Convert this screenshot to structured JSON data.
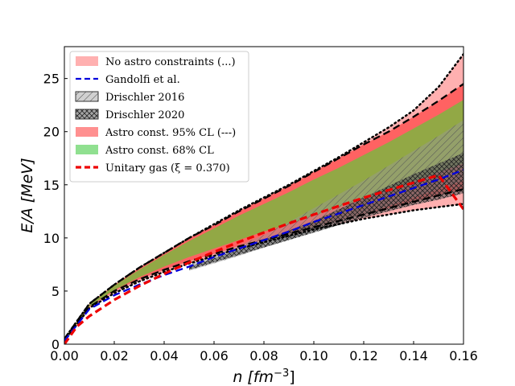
{
  "chart_data": {
    "type": "area",
    "xlabel_main": "n [fm",
    "xlabel_sup": "−3",
    "xlabel_end": "]",
    "ylabel": "E/A [MeV]",
    "xlim": [
      0,
      0.16
    ],
    "ylim": [
      0,
      28
    ],
    "x_ticks": [
      0.0,
      0.02,
      0.04,
      0.06,
      0.08,
      0.1,
      0.12,
      0.14,
      0.16
    ],
    "x_tick_labels": [
      "0.00",
      "0.02",
      "0.04",
      "0.06",
      "0.08",
      "0.10",
      "0.12",
      "0.14",
      "0.16"
    ],
    "y_ticks": [
      0,
      5,
      10,
      15,
      20,
      25
    ],
    "y_tick_labels": [
      "0",
      "5",
      "10",
      "15",
      "20",
      "25"
    ],
    "legend_position": "top-left",
    "legend": [
      {
        "label": "No astro constraints (...)",
        "kind": "patch",
        "color": "#ffb0b0"
      },
      {
        "label": "Gandolfi et al.",
        "kind": "line",
        "color": "#0000dd",
        "dash": "dashed"
      },
      {
        "label": "Drischler 2016",
        "kind": "hatch-patch",
        "color": "#aaaaaa"
      },
      {
        "label": "Drischler 2020",
        "kind": "hatch-patch",
        "color": "#666666"
      },
      {
        "label": "Astro const. 95% CL (---)",
        "kind": "patch",
        "color": "#ff9090"
      },
      {
        "label": "Astro const. 68% CL",
        "kind": "patch",
        "color": "#90e090"
      },
      {
        "label": "Unitary gas (ξ = 0.370)",
        "kind": "line",
        "color": "#ee0000",
        "dash": "dashed"
      }
    ],
    "series": [
      {
        "name": "No astro constraints",
        "type": "band",
        "color": "#ffb0b0",
        "x": [
          0.0,
          0.01,
          0.02,
          0.03,
          0.04,
          0.05,
          0.06,
          0.07,
          0.08,
          0.09,
          0.1,
          0.11,
          0.12,
          0.13,
          0.14,
          0.15,
          0.16
        ],
        "lower": [
          0.3,
          3.4,
          4.8,
          5.9,
          6.8,
          7.6,
          8.3,
          9.0,
          9.6,
          10.2,
          10.8,
          11.3,
          11.8,
          12.2,
          12.6,
          12.9,
          13.2
        ],
        "upper": [
          0.5,
          3.8,
          5.6,
          7.2,
          8.6,
          10.0,
          11.3,
          12.6,
          13.8,
          15.0,
          16.3,
          17.6,
          19.0,
          20.4,
          22.0,
          24.2,
          27.3
        ]
      },
      {
        "name": "Astro const. 95% CL",
        "type": "band",
        "color": "#ff5555",
        "x": [
          0.0,
          0.01,
          0.02,
          0.03,
          0.04,
          0.05,
          0.06,
          0.07,
          0.08,
          0.09,
          0.1,
          0.11,
          0.12,
          0.13,
          0.14,
          0.15,
          0.16
        ],
        "lower": [
          0.3,
          3.5,
          5.0,
          6.1,
          7.0,
          7.8,
          8.5,
          9.2,
          9.8,
          10.4,
          11.0,
          11.6,
          12.2,
          12.8,
          13.4,
          14.0,
          14.6
        ],
        "upper": [
          0.5,
          3.8,
          5.6,
          7.2,
          8.6,
          10.0,
          11.2,
          12.5,
          13.7,
          14.9,
          16.2,
          17.5,
          18.8,
          20.0,
          21.4,
          22.9,
          24.5
        ]
      },
      {
        "name": "Astro const. 68% CL",
        "type": "band",
        "color": "#86b043",
        "x": [
          0.0,
          0.01,
          0.02,
          0.03,
          0.04,
          0.05,
          0.06,
          0.07,
          0.08,
          0.09,
          0.1,
          0.11,
          0.12,
          0.13,
          0.14,
          0.15,
          0.16
        ],
        "lower": [
          0.3,
          3.55,
          5.1,
          6.3,
          7.3,
          8.2,
          9.0,
          9.8,
          10.6,
          11.3,
          12.1,
          12.9,
          13.7,
          14.5,
          15.3,
          16.2,
          17.0
        ],
        "upper": [
          0.5,
          3.75,
          5.5,
          7.0,
          8.4,
          9.7,
          10.9,
          12.1,
          13.2,
          14.3,
          15.5,
          16.6,
          17.8,
          19.0,
          20.3,
          21.6,
          23.0
        ]
      },
      {
        "name": "Drischler 2016",
        "type": "band",
        "color": "#999999",
        "x": [
          0.05,
          0.06,
          0.07,
          0.08,
          0.09,
          0.1,
          0.11,
          0.12,
          0.13,
          0.14,
          0.15,
          0.16
        ],
        "lower": [
          6.9,
          7.6,
          8.3,
          9.1,
          9.8,
          10.6,
          11.4,
          12.2,
          13.0,
          13.8,
          14.6,
          15.4
        ],
        "upper": [
          7.5,
          8.4,
          9.3,
          10.3,
          11.5,
          12.8,
          14.1,
          15.4,
          16.8,
          18.2,
          19.6,
          21.1
        ]
      },
      {
        "name": "Drischler 2020",
        "type": "band",
        "color": "#555555",
        "x": [
          0.05,
          0.06,
          0.07,
          0.08,
          0.09,
          0.1,
          0.11,
          0.12,
          0.13,
          0.14,
          0.15,
          0.16
        ],
        "lower": [
          7.0,
          7.7,
          8.4,
          9.1,
          9.8,
          10.5,
          11.2,
          11.9,
          12.5,
          13.1,
          13.6,
          14.2
        ],
        "upper": [
          7.3,
          8.1,
          8.9,
          9.8,
          10.7,
          11.6,
          12.7,
          13.8,
          14.9,
          16.0,
          17.0,
          18.0
        ]
      },
      {
        "name": "No astro bound (lower)",
        "type": "line",
        "color": "#000000",
        "dash": "dotted",
        "x": [
          0.0,
          0.01,
          0.02,
          0.03,
          0.04,
          0.05,
          0.06,
          0.07,
          0.08,
          0.09,
          0.1,
          0.11,
          0.12,
          0.13,
          0.14,
          0.15,
          0.16
        ],
        "y": [
          0.3,
          3.4,
          4.8,
          5.9,
          6.8,
          7.6,
          8.3,
          9.0,
          9.6,
          10.2,
          10.8,
          11.3,
          11.8,
          12.2,
          12.6,
          12.9,
          13.2
        ]
      },
      {
        "name": "No astro bound (upper)",
        "type": "line",
        "color": "#000000",
        "dash": "dotted",
        "x": [
          0.0,
          0.01,
          0.02,
          0.03,
          0.04,
          0.05,
          0.06,
          0.07,
          0.08,
          0.09,
          0.1,
          0.11,
          0.12,
          0.13,
          0.14,
          0.15,
          0.16
        ],
        "y": [
          0.5,
          3.8,
          5.6,
          7.2,
          8.6,
          10.0,
          11.3,
          12.6,
          13.8,
          15.0,
          16.3,
          17.6,
          19.0,
          20.4,
          22.0,
          24.2,
          27.3
        ]
      },
      {
        "name": "Astro 95% bound (lower)",
        "type": "line",
        "color": "#000000",
        "dash": "dashed",
        "x": [
          0.0,
          0.01,
          0.02,
          0.03,
          0.04,
          0.05,
          0.06,
          0.07,
          0.08,
          0.09,
          0.1,
          0.11,
          0.12,
          0.13,
          0.14,
          0.15,
          0.16
        ],
        "y": [
          0.3,
          3.5,
          5.0,
          6.1,
          7.0,
          7.8,
          8.5,
          9.2,
          9.8,
          10.4,
          11.0,
          11.6,
          12.2,
          12.8,
          13.4,
          14.0,
          14.6
        ]
      },
      {
        "name": "Astro 95% bound (upper)",
        "type": "line",
        "color": "#000000",
        "dash": "dashed",
        "x": [
          0.0,
          0.01,
          0.02,
          0.03,
          0.04,
          0.05,
          0.06,
          0.07,
          0.08,
          0.09,
          0.1,
          0.11,
          0.12,
          0.13,
          0.14,
          0.15,
          0.16
        ],
        "y": [
          0.5,
          3.8,
          5.6,
          7.2,
          8.6,
          10.0,
          11.2,
          12.5,
          13.7,
          14.9,
          16.2,
          17.5,
          18.8,
          20.0,
          21.4,
          22.9,
          24.5
        ]
      },
      {
        "name": "Gandolfi et al.",
        "type": "line",
        "color": "#0000dd",
        "dash": "dashed",
        "x": [
          0.0,
          0.01,
          0.02,
          0.03,
          0.04,
          0.05,
          0.06,
          0.07,
          0.08,
          0.09,
          0.1,
          0.11,
          0.12,
          0.13,
          0.14,
          0.15,
          0.16
        ],
        "y": [
          0.3,
          3.3,
          4.6,
          5.6,
          6.5,
          7.3,
          8.2,
          9.0,
          9.8,
          10.6,
          11.5,
          12.3,
          13.1,
          13.9,
          14.7,
          15.5,
          16.4
        ]
      },
      {
        "name": "Unitary gas (ξ = 0.370)",
        "type": "line",
        "color": "#ee0000",
        "dash": "dashed",
        "x": [
          0.0,
          0.005,
          0.01,
          0.02,
          0.03,
          0.04,
          0.05,
          0.06,
          0.07,
          0.08,
          0.09,
          0.1,
          0.11,
          0.12,
          0.13,
          0.14,
          0.15,
          0.16
        ],
        "y": [
          0.0,
          1.66,
          2.63,
          4.17,
          5.47,
          6.62,
          7.69,
          8.68,
          9.62,
          10.51,
          11.37,
          12.2,
          13.0,
          13.78,
          14.5,
          15.2,
          15.9,
          12.7
        ]
      }
    ]
  }
}
